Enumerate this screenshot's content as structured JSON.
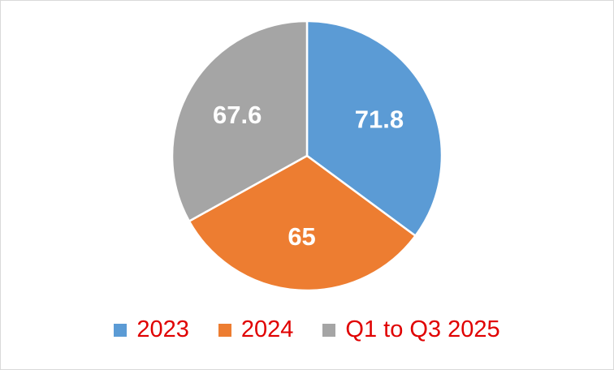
{
  "chart_data": {
    "type": "pie",
    "categories": [
      "2023",
      "2024",
      "Q1 to Q3 2025"
    ],
    "values": [
      71.8,
      65,
      67.6
    ],
    "data_labels": [
      "71.8",
      "65",
      "67.6"
    ],
    "colors": [
      "#5b9bd5",
      "#ed7d31",
      "#a5a5a5"
    ],
    "start_angle_deg": 0,
    "direction": "clockwise",
    "legend_position": "bottom",
    "legend_text_color": "#e00000",
    "title": ""
  }
}
